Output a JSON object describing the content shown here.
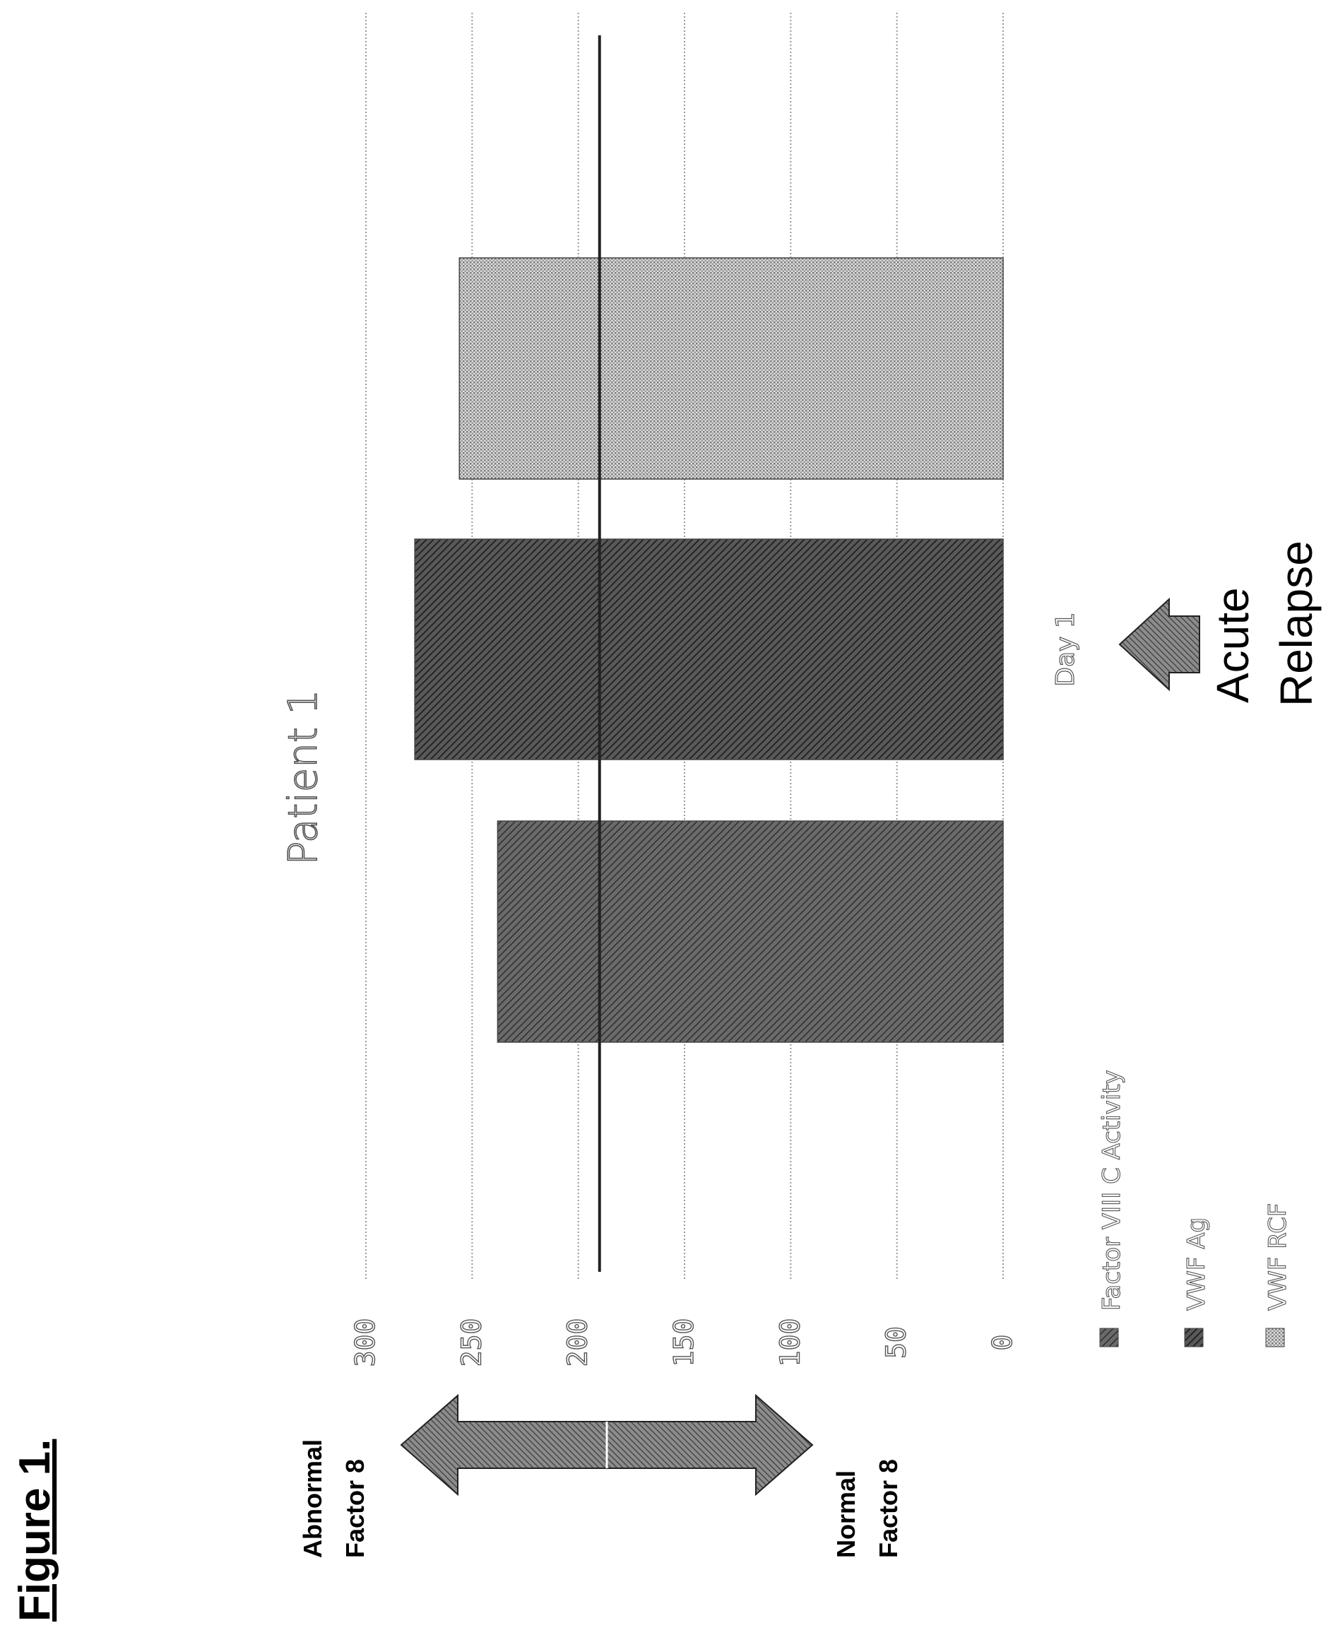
{
  "figure_label": "Figure 1.",
  "annotations": {
    "abnormal_line1": "Abnormal",
    "abnormal_line2": "Factor 8",
    "normal_line1": "Normal",
    "normal_line2": "Factor 8",
    "event_line1": "Acute",
    "event_line2": "Relapse"
  },
  "chart_data": {
    "type": "bar",
    "orientation": "rotated-90-ccw",
    "title": "Patient 1",
    "categories": [
      "Day 1"
    ],
    "series": [
      {
        "name": "Factor VIII C Activity",
        "values": [
          238
        ]
      },
      {
        "name": "VWF Ag",
        "values": [
          277
        ]
      },
      {
        "name": "VWF RCF",
        "values": [
          256
        ]
      }
    ],
    "reference_line": 190,
    "ylim": [
      0,
      300
    ],
    "yticks": [
      0,
      50,
      100,
      150,
      200,
      250,
      300
    ],
    "grid": true,
    "legend_position": "bottom"
  }
}
